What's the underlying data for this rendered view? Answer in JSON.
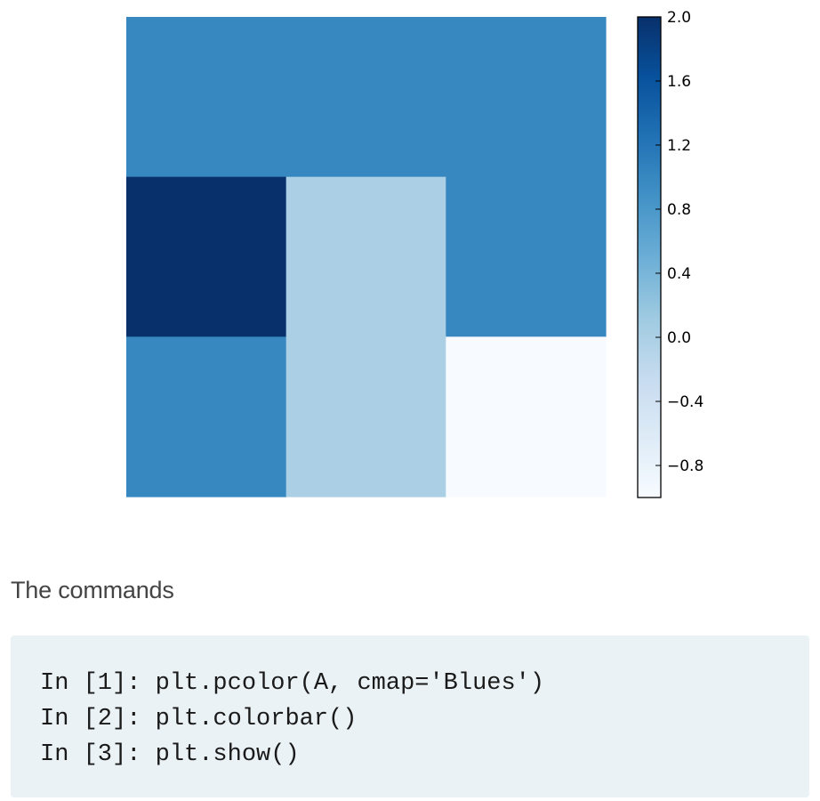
{
  "chart_data": {
    "type": "heatmap",
    "colormap": "Blues",
    "rows": [
      [
        1.0,
        1.0,
        1.0
      ],
      [
        2.0,
        0.0,
        1.0
      ],
      [
        1.0,
        0.0,
        -1.0
      ]
    ],
    "row_order": "top-to-bottom",
    "vmin": -1.0,
    "vmax": 2.0,
    "axes_visible": false,
    "colorbar": {
      "position": "right",
      "ticks": [
        2.0,
        1.6,
        1.2,
        0.8,
        0.4,
        0.0,
        -0.4,
        -0.8
      ],
      "tick_labels": [
        "2.0",
        "1.6",
        "1.2",
        "0.8",
        "0.4",
        "0.0",
        "−0.4",
        "−0.8"
      ]
    }
  },
  "caption": "The commands",
  "code": {
    "lines": [
      "In [1]: plt.pcolor(A, cmap='Blues')",
      "In [2]: plt.colorbar()",
      "In [3]: plt.show()"
    ]
  },
  "colors": {
    "code_background": "#eaf2f5",
    "blues_stops": [
      "#f7fbff",
      "#deebf7",
      "#c6dbef",
      "#9ecae1",
      "#6baed6",
      "#4292c6",
      "#2171b5",
      "#08519c",
      "#08306b"
    ]
  }
}
